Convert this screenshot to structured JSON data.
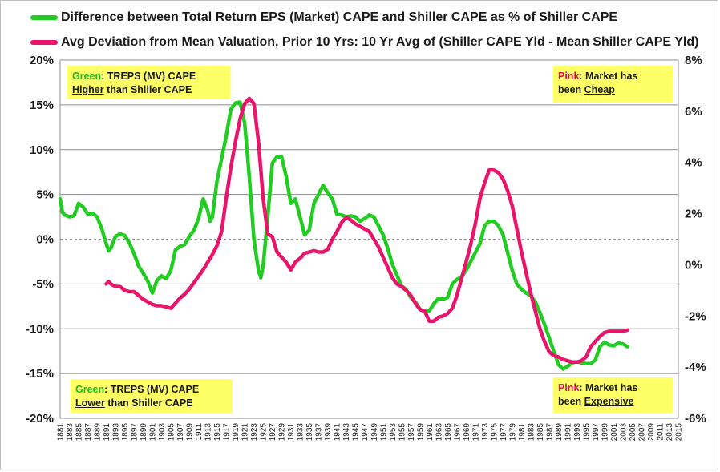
{
  "legend": {
    "green_label": "Difference between Total Return EPS (Market) CAPE and Shiller CAPE as % of Shiller CAPE",
    "pink_label": "Avg Deviation from Mean Valuation, Prior 10 Yrs: 10 Yr Avg of (Shiller CAPE Yld - Mean Shiller CAPE Yld)"
  },
  "notes": {
    "top_left": {
      "prefix": "Green",
      "line1_rest": ": TREPS (MV) CAPE",
      "line2_u": "Higher",
      "line2_rest": " than Shiller CAPE"
    },
    "bottom_left": {
      "prefix": "Green",
      "line1_rest": ": TREPS (MV) CAPE",
      "line2_u": "Lower",
      "line2_rest": " than Shiller CAPE"
    },
    "top_right": {
      "prefix": "Pink",
      "line1_rest": ": Market has",
      "line2_pre": "been ",
      "line2_u": "Cheap"
    },
    "bottom_right": {
      "prefix": "Pink",
      "line1_rest": ": Market has",
      "line2_pre": "been ",
      "line2_u": "Expensive"
    }
  },
  "colors": {
    "green": "#22cc22",
    "pink": "#e8166a",
    "grid": "#8c8c8c"
  },
  "chart_data": {
    "type": "line",
    "x_range": [
      1881,
      2015
    ],
    "x_tick_labels": [
      "1881",
      "1883",
      "1885",
      "1887",
      "1889",
      "1891",
      "1893",
      "1895",
      "1897",
      "1899",
      "1901",
      "1903",
      "1905",
      "1907",
      "1909",
      "1911",
      "1913",
      "1915",
      "1917",
      "1919",
      "1921",
      "1923",
      "1925",
      "1927",
      "1929",
      "1931",
      "1933",
      "1935",
      "1937",
      "1939",
      "1941",
      "1943",
      "1945",
      "1947",
      "1949",
      "1951",
      "1953",
      "1955",
      "1957",
      "1959",
      "1961",
      "1963",
      "1965",
      "1967",
      "1969",
      "1971",
      "1973",
      "1975",
      "1977",
      "1979",
      "1981",
      "1983",
      "1985",
      "1987",
      "1989",
      "1991",
      "1993",
      "1995",
      "1997",
      "1999",
      "2001",
      "2003",
      "2005",
      "2007",
      "2009",
      "2011",
      "2013",
      "2015"
    ],
    "left_axis": {
      "min": -20,
      "max": 20,
      "step": 5,
      "unit": "%",
      "tick_labels": [
        "20%",
        "15%",
        "10%",
        "5%",
        "0%",
        "-5%",
        "-10%",
        "-15%",
        "-20%"
      ]
    },
    "right_axis": {
      "min": -6,
      "max": 8,
      "step": 2,
      "unit": "%",
      "tick_labels": [
        "8%",
        "6%",
        "4%",
        "2%",
        "0%",
        "-2%",
        "-4%",
        "-6%"
      ]
    },
    "grid": true,
    "series": [
      {
        "name": "Difference between Total Return EPS (Market) CAPE and Shiller CAPE as % of Shiller CAPE",
        "color": "#22cc22",
        "axis": "left",
        "points": [
          [
            1881,
            4.5
          ],
          [
            1881.5,
            3.0
          ],
          [
            1882,
            2.7
          ],
          [
            1883,
            2.5
          ],
          [
            1884,
            2.6
          ],
          [
            1885,
            4.0
          ],
          [
            1886,
            3.6
          ],
          [
            1887,
            2.8
          ],
          [
            1888,
            2.9
          ],
          [
            1889,
            2.5
          ],
          [
            1890,
            1.2
          ],
          [
            1891,
            -0.5
          ],
          [
            1891.5,
            -1.3
          ],
          [
            1892,
            -1.0
          ],
          [
            1893,
            0.3
          ],
          [
            1894,
            0.6
          ],
          [
            1895,
            0.4
          ],
          [
            1896,
            -0.4
          ],
          [
            1897,
            -1.6
          ],
          [
            1898,
            -3.0
          ],
          [
            1899,
            -3.8
          ],
          [
            1900,
            -4.7
          ],
          [
            1901,
            -6.0
          ],
          [
            1902,
            -4.6
          ],
          [
            1903,
            -4.1
          ],
          [
            1904,
            -4.4
          ],
          [
            1905,
            -3.5
          ],
          [
            1906,
            -1.2
          ],
          [
            1907,
            -0.8
          ],
          [
            1908,
            -0.6
          ],
          [
            1909,
            0.3
          ],
          [
            1910,
            1.0
          ],
          [
            1911,
            2.3
          ],
          [
            1912,
            4.5
          ],
          [
            1913,
            3.2
          ],
          [
            1913.5,
            2.0
          ],
          [
            1914,
            2.5
          ],
          [
            1915,
            6.5
          ],
          [
            1916,
            9.0
          ],
          [
            1917,
            11.5
          ],
          [
            1918,
            14.5
          ],
          [
            1919,
            15.2
          ],
          [
            1920,
            15.3
          ],
          [
            1921,
            13.0
          ],
          [
            1922,
            7.0
          ],
          [
            1923,
            0.0
          ],
          [
            1924,
            -3.5
          ],
          [
            1924.5,
            -4.3
          ],
          [
            1925,
            -3.0
          ],
          [
            1926,
            2.5
          ],
          [
            1927,
            8.5
          ],
          [
            1928,
            9.2
          ],
          [
            1929,
            9.2
          ],
          [
            1930,
            7.0
          ],
          [
            1931,
            4.0
          ],
          [
            1932,
            4.5
          ],
          [
            1933,
            2.5
          ],
          [
            1934,
            0.5
          ],
          [
            1935,
            1.0
          ],
          [
            1936,
            4.0
          ],
          [
            1937,
            5.0
          ],
          [
            1938,
            6.0
          ],
          [
            1939,
            5.2
          ],
          [
            1940,
            4.5
          ],
          [
            1941,
            2.8
          ],
          [
            1942,
            2.7
          ],
          [
            1943,
            2.5
          ],
          [
            1944,
            2.6
          ],
          [
            1945,
            2.5
          ],
          [
            1946,
            2.0
          ],
          [
            1947,
            2.3
          ],
          [
            1948,
            2.7
          ],
          [
            1949,
            2.5
          ],
          [
            1950,
            1.5
          ],
          [
            1951,
            0.5
          ],
          [
            1952,
            -1.0
          ],
          [
            1953,
            -2.8
          ],
          [
            1954,
            -4.0
          ],
          [
            1955,
            -5.2
          ],
          [
            1956,
            -5.6
          ],
          [
            1957,
            -6.5
          ],
          [
            1958,
            -7.0
          ],
          [
            1959,
            -7.8
          ],
          [
            1960,
            -8.1
          ],
          [
            1961,
            -8.0
          ],
          [
            1962,
            -7.2
          ],
          [
            1963,
            -6.6
          ],
          [
            1964,
            -6.7
          ],
          [
            1965,
            -6.5
          ],
          [
            1966,
            -5.0
          ],
          [
            1967,
            -4.5
          ],
          [
            1968,
            -4.2
          ],
          [
            1969,
            -3.5
          ],
          [
            1970,
            -2.5
          ],
          [
            1971,
            -1.5
          ],
          [
            1972,
            -0.5
          ],
          [
            1973,
            1.5
          ],
          [
            1974,
            2.0
          ],
          [
            1975,
            2.0
          ],
          [
            1976,
            1.5
          ],
          [
            1977,
            0.5
          ],
          [
            1978,
            -1.5
          ],
          [
            1979,
            -3.5
          ],
          [
            1980,
            -5.0
          ],
          [
            1981,
            -5.6
          ],
          [
            1982,
            -6.0
          ],
          [
            1983,
            -6.3
          ],
          [
            1984,
            -7.0
          ],
          [
            1985,
            -8.2
          ],
          [
            1986,
            -9.5
          ],
          [
            1987,
            -11.0
          ],
          [
            1988,
            -12.5
          ],
          [
            1989,
            -14.0
          ],
          [
            1990,
            -14.5
          ],
          [
            1991,
            -14.2
          ],
          [
            1992,
            -13.8
          ],
          [
            1993,
            -13.7
          ],
          [
            1994,
            -13.8
          ],
          [
            1995,
            -13.9
          ],
          [
            1996,
            -13.9
          ],
          [
            1997,
            -13.5
          ],
          [
            1998,
            -12.0
          ],
          [
            1999,
            -11.5
          ],
          [
            2000,
            -11.8
          ],
          [
            2001,
            -11.9
          ],
          [
            2002,
            -11.6
          ],
          [
            2003,
            -11.7
          ],
          [
            2004,
            -12.0
          ]
        ]
      },
      {
        "name": "Avg Deviation from Mean Valuation, Prior 10 Yrs: 10 Yr Avg of (Shiller CAPE Yld - Mean Shiller CAPE Yld)",
        "color": "#e8166a",
        "axis": "right",
        "points": [
          [
            1891,
            -0.75
          ],
          [
            1891.5,
            -0.65
          ],
          [
            1892,
            -0.75
          ],
          [
            1893,
            -0.85
          ],
          [
            1894,
            -0.85
          ],
          [
            1895,
            -1.0
          ],
          [
            1896,
            -1.05
          ],
          [
            1897,
            -1.05
          ],
          [
            1898,
            -1.2
          ],
          [
            1899,
            -1.35
          ],
          [
            1900,
            -1.45
          ],
          [
            1901,
            -1.55
          ],
          [
            1902,
            -1.6
          ],
          [
            1903,
            -1.6
          ],
          [
            1904,
            -1.65
          ],
          [
            1905,
            -1.7
          ],
          [
            1906,
            -1.5
          ],
          [
            1907,
            -1.3
          ],
          [
            1908,
            -1.15
          ],
          [
            1909,
            -0.95
          ],
          [
            1910,
            -0.7
          ],
          [
            1911,
            -0.45
          ],
          [
            1912,
            -0.2
          ],
          [
            1913,
            0.1
          ],
          [
            1914,
            0.4
          ],
          [
            1915,
            0.75
          ],
          [
            1916,
            1.3
          ],
          [
            1917,
            2.6
          ],
          [
            1918,
            3.8
          ],
          [
            1919,
            4.8
          ],
          [
            1920,
            5.7
          ],
          [
            1921,
            6.3
          ],
          [
            1922,
            6.5
          ],
          [
            1923,
            6.3
          ],
          [
            1924,
            4.8
          ],
          [
            1925,
            2.6
          ],
          [
            1926,
            1.2
          ],
          [
            1927,
            1.1
          ],
          [
            1928,
            0.5
          ],
          [
            1929,
            0.3
          ],
          [
            1930,
            0.1
          ],
          [
            1931,
            -0.2
          ],
          [
            1932,
            0.1
          ],
          [
            1933,
            0.25
          ],
          [
            1934,
            0.45
          ],
          [
            1935,
            0.5
          ],
          [
            1936,
            0.55
          ],
          [
            1937,
            0.5
          ],
          [
            1938,
            0.5
          ],
          [
            1939,
            0.6
          ],
          [
            1940,
            1.0
          ],
          [
            1941,
            1.3
          ],
          [
            1942,
            1.65
          ],
          [
            1943,
            1.85
          ],
          [
            1944,
            1.75
          ],
          [
            1945,
            1.6
          ],
          [
            1946,
            1.5
          ],
          [
            1947,
            1.4
          ],
          [
            1948,
            1.3
          ],
          [
            1949,
            1.0
          ],
          [
            1950,
            0.7
          ],
          [
            1951,
            0.3
          ],
          [
            1952,
            -0.1
          ],
          [
            1953,
            -0.5
          ],
          [
            1954,
            -0.75
          ],
          [
            1955,
            -0.85
          ],
          [
            1956,
            -1.0
          ],
          [
            1957,
            -1.2
          ],
          [
            1958,
            -1.5
          ],
          [
            1959,
            -1.75
          ],
          [
            1960,
            -1.8
          ],
          [
            1961,
            -2.2
          ],
          [
            1962,
            -2.2
          ],
          [
            1963,
            -2.05
          ],
          [
            1964,
            -2.0
          ],
          [
            1965,
            -1.9
          ],
          [
            1966,
            -1.7
          ],
          [
            1967,
            -1.2
          ],
          [
            1968,
            -0.55
          ],
          [
            1969,
            0.1
          ],
          [
            1970,
            0.8
          ],
          [
            1971,
            1.6
          ],
          [
            1972,
            2.6
          ],
          [
            1973,
            3.2
          ],
          [
            1974,
            3.7
          ],
          [
            1975,
            3.7
          ],
          [
            1976,
            3.6
          ],
          [
            1977,
            3.35
          ],
          [
            1978,
            2.9
          ],
          [
            1979,
            2.3
          ],
          [
            1980,
            1.4
          ],
          [
            1981,
            0.5
          ],
          [
            1982,
            -0.3
          ],
          [
            1983,
            -1.1
          ],
          [
            1984,
            -1.8
          ],
          [
            1985,
            -2.5
          ],
          [
            1986,
            -3.0
          ],
          [
            1987,
            -3.4
          ],
          [
            1988,
            -3.55
          ],
          [
            1989,
            -3.6
          ],
          [
            1990,
            -3.7
          ],
          [
            1991,
            -3.75
          ],
          [
            1992,
            -3.8
          ],
          [
            1993,
            -3.8
          ],
          [
            1994,
            -3.75
          ],
          [
            1995,
            -3.6
          ],
          [
            1996,
            -3.2
          ],
          [
            1997,
            -3.0
          ],
          [
            1998,
            -2.8
          ],
          [
            1999,
            -2.65
          ],
          [
            2000,
            -2.6
          ],
          [
            2001,
            -2.6
          ],
          [
            2002,
            -2.6
          ],
          [
            2003,
            -2.6
          ],
          [
            2004,
            -2.55
          ]
        ]
      }
    ]
  }
}
